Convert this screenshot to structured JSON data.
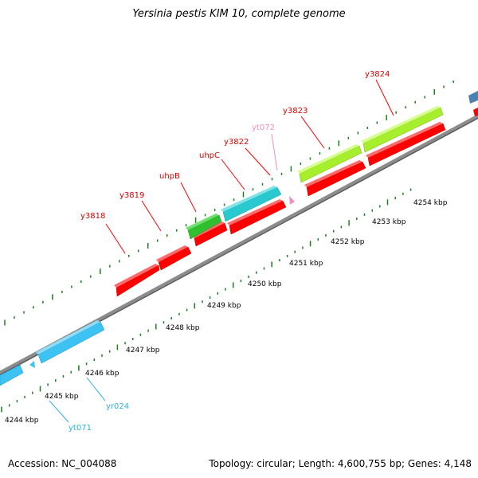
{
  "title": "Yersinia pestis KIM 10, complete genome",
  "footer": {
    "accession_label": "Accession:",
    "accession_value": "NC_004088",
    "topology_label": "Topology:",
    "topology_value": "circular",
    "length_label": "Length:",
    "length_value": "4,600,755 bp",
    "genes_label": "Genes:",
    "genes_value": "4,148"
  },
  "scale": {
    "unit": "kbp",
    "ticks": [
      "4244 kbp",
      "4245 kbp",
      "4246 kbp",
      "4247 kbp",
      "4248 kbp",
      "4249 kbp",
      "4250 kbp",
      "4251 kbp",
      "4252 kbp",
      "4253 kbp",
      "4254 kbp"
    ]
  },
  "colors": {
    "backbone": "#8c8c8c",
    "tick": "#1e7d1e",
    "red_gene": "#ff0000",
    "green_gene": "#2fbf2f",
    "lime_gene": "#a7ee2c",
    "cyan_gene": "#29c9d0",
    "sky_gene": "#3cc2f3",
    "steel_gene": "#4b82b4",
    "pink_feature": "#f28ec3",
    "red_label": "#dd0000",
    "cyan_label": "#2ab2e0",
    "pink_label": "#f28ec3"
  },
  "genes": [
    {
      "label": "y3818",
      "color": "red",
      "strand": "plus"
    },
    {
      "label": "y3819",
      "color": "red",
      "strand": "plus"
    },
    {
      "label": "uhpB",
      "color": "green",
      "strand": "plus"
    },
    {
      "label": "uhpC",
      "color": "cyan",
      "strand": "plus"
    },
    {
      "label": "y3822",
      "color": "red",
      "strand": "plus"
    },
    {
      "label": "yt072",
      "color": "pink",
      "strand": "plus"
    },
    {
      "label": "y3823",
      "color": "lime",
      "strand": "plus"
    },
    {
      "label": "y3824",
      "color": "lime",
      "strand": "plus"
    },
    {
      "label": "yr024",
      "color": "sky",
      "strand": "minus"
    },
    {
      "label": "yt071",
      "color": "sky",
      "strand": "minus"
    }
  ]
}
